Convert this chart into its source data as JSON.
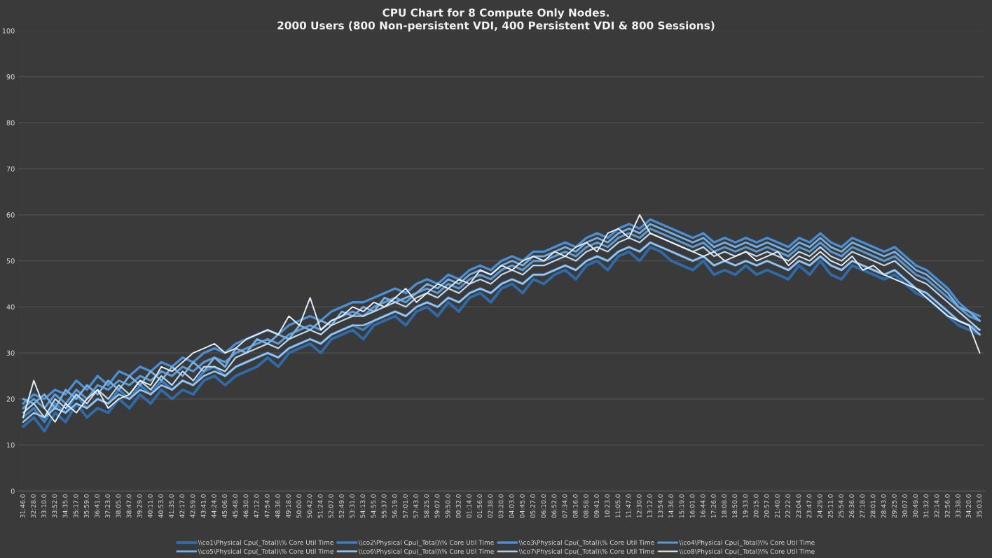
{
  "chart_data": {
    "type": "line",
    "title": "CPU Chart for 8 Compute Only Nodes.",
    "subtitle": "2000 Users (800 Non-persistent VDI, 400 Persistent VDI & 800 Sessions)",
    "categories": [
      "31:46.0",
      "32:28.0",
      "33:10.0",
      "33:52.0",
      "34:35.0",
      "35:17.0",
      "35:59.0",
      "36:41.0",
      "37:23.0",
      "38:05.0",
      "38:47.0",
      "39:29.0",
      "40:11.0",
      "40:53.0",
      "41:35.0",
      "42:17.0",
      "42:59.0",
      "43:41.0",
      "44:24.0",
      "45:06.0",
      "45:48.0",
      "46:30.0",
      "47:12.0",
      "47:54.0",
      "48:36.0",
      "49:18.0",
      "50:00.0",
      "50:42.0",
      "51:24.0",
      "52:07.0",
      "52:49.0",
      "53:31.0",
      "54:13.0",
      "54:55.0",
      "55:37.0",
      "56:19.0",
      "57:01.0",
      "57:43.0",
      "58:25.0",
      "59:07.0",
      "59:50.0",
      "00:32.0",
      "01:14.0",
      "01:56.0",
      "02:38.0",
      "03:20.0",
      "04:03.0",
      "04:45.0",
      "05:27.0",
      "06:10.0",
      "06:52.0",
      "07:34.0",
      "08:16.0",
      "08:58.0",
      "09:41.0",
      "10:23.0",
      "11:05.0",
      "11:47.0",
      "12:30.0",
      "13:12.0",
      "13:54.0",
      "14:36.0",
      "15:19.0",
      "16:01.0",
      "16:44.0",
      "17:26.0",
      "18:08.0",
      "18:50.0",
      "19:33.0",
      "20:15.0",
      "20:57.0",
      "21:40.0",
      "22:22.0",
      "23:04.0",
      "23:47.0",
      "24:29.0",
      "25:11.0",
      "25:54.0",
      "26:36.0",
      "27:18.0",
      "28:01.0",
      "28:43.0",
      "29:25.0",
      "30:07.0",
      "30:49.0",
      "31:32.0",
      "32:14.0",
      "32:56.0",
      "33:38.0",
      "34:20.0",
      "35:03.0"
    ],
    "series": [
      {
        "name": "\\\\co1\\Physical Cpu(_Total)\\% Core Util Time",
        "color": "#2f6ba8",
        "values": [
          14,
          16,
          13,
          17,
          15,
          19,
          16,
          18,
          17,
          20,
          18,
          21,
          19,
          22,
          20,
          22,
          21,
          24,
          25,
          23,
          25,
          26,
          27,
          29,
          27,
          30,
          31,
          32,
          30,
          33,
          34,
          35,
          33,
          36,
          37,
          38,
          36,
          39,
          40,
          38,
          41,
          39,
          42,
          43,
          41,
          44,
          45,
          43,
          46,
          45,
          47,
          48,
          46,
          49,
          50,
          48,
          51,
          52,
          50,
          53,
          52,
          50,
          49,
          48,
          50,
          47,
          48,
          47,
          49,
          47,
          48,
          47,
          46,
          49,
          47,
          50,
          47,
          46,
          49,
          48,
          47,
          46,
          47,
          45,
          43,
          42,
          40,
          38,
          36,
          35,
          34
        ]
      },
      {
        "name": "\\\\co2\\Physical Cpu(_Total)\\% Core Util Time",
        "color": "#3b7dbf",
        "values": [
          16,
          18,
          15,
          19,
          17,
          21,
          18,
          20,
          19,
          22,
          20,
          23,
          21,
          24,
          22,
          24,
          23,
          26,
          27,
          25,
          27,
          28,
          29,
          30,
          29,
          31,
          32,
          33,
          32,
          34,
          35,
          36,
          35,
          37,
          38,
          39,
          38,
          40,
          41,
          40,
          42,
          41,
          43,
          44,
          43,
          45,
          46,
          45,
          47,
          47,
          48,
          49,
          48,
          50,
          51,
          50,
          52,
          53,
          52,
          54,
          53,
          52,
          51,
          50,
          51,
          49,
          50,
          49,
          50,
          49,
          50,
          49,
          48,
          50,
          49,
          51,
          49,
          48,
          50,
          49,
          48,
          47,
          48,
          46,
          44,
          43,
          41,
          39,
          37,
          36,
          35
        ]
      },
      {
        "name": "\\\\co3\\Physical Cpu(_Total)\\% Core Util Time",
        "color": "#4a8ed3",
        "values": [
          19,
          21,
          20,
          22,
          21,
          24,
          22,
          25,
          23,
          26,
          25,
          27,
          26,
          28,
          27,
          29,
          28,
          30,
          31,
          30,
          32,
          33,
          34,
          35,
          34,
          36,
          37,
          38,
          37,
          39,
          40,
          41,
          41,
          42,
          43,
          44,
          43,
          45,
          46,
          45,
          47,
          46,
          48,
          49,
          48,
          50,
          51,
          50,
          52,
          52,
          53,
          54,
          53,
          55,
          56,
          55,
          57,
          58,
          57,
          59,
          58,
          57,
          56,
          55,
          56,
          54,
          55,
          54,
          55,
          54,
          55,
          54,
          53,
          55,
          54,
          56,
          54,
          53,
          55,
          54,
          53,
          52,
          53,
          51,
          49,
          48,
          46,
          44,
          41,
          39,
          38
        ]
      },
      {
        "name": "\\\\co4\\Physical Cpu(_Total)\\% Core Util Time",
        "color": "#5b9bd5",
        "values": [
          18,
          20,
          18,
          21,
          19,
          22,
          20,
          23,
          22,
          24,
          23,
          25,
          24,
          26,
          25,
          27,
          26,
          28,
          29,
          28,
          30,
          31,
          32,
          33,
          32,
          34,
          35,
          36,
          35,
          37,
          38,
          39,
          38,
          40,
          41,
          42,
          41,
          43,
          44,
          43,
          45,
          44,
          46,
          47,
          46,
          48,
          49,
          48,
          50,
          50,
          51,
          52,
          51,
          53,
          54,
          53,
          55,
          56,
          55,
          57,
          56,
          55,
          54,
          53,
          54,
          52,
          53,
          52,
          53,
          52,
          53,
          52,
          51,
          53,
          52,
          54,
          52,
          51,
          53,
          52,
          51,
          50,
          51,
          49,
          47,
          46,
          44,
          42,
          40,
          38,
          37
        ]
      },
      {
        "name": "\\\\co5\\Physical Cpu(_Total)\\% Core Util Time",
        "color": "#7aaee0",
        "values": [
          20,
          19,
          21,
          18,
          22,
          20,
          23,
          21,
          24,
          22,
          25,
          23,
          26,
          24,
          27,
          25,
          28,
          26,
          29,
          27,
          31,
          30,
          33,
          32,
          34,
          33,
          36,
          35,
          37,
          36,
          39,
          38,
          40,
          39,
          42,
          41,
          42,
          43,
          45,
          44,
          46,
          45,
          47,
          48,
          47,
          49,
          50,
          49,
          51,
          51,
          52,
          53,
          52,
          54,
          55,
          54,
          56,
          57,
          56,
          58,
          57,
          56,
          55,
          54,
          55,
          53,
          54,
          53,
          54,
          53,
          54,
          53,
          52,
          54,
          53,
          55,
          53,
          52,
          54,
          53,
          52,
          51,
          52,
          50,
          48,
          47,
          45,
          43,
          40,
          39,
          37
        ]
      },
      {
        "name": "\\\\co6\\Physical Cpu(_Total)\\% Core Util Time",
        "color": "#9dc3e6",
        "values": [
          15,
          17,
          16,
          18,
          17,
          19,
          18,
          20,
          19,
          21,
          20,
          22,
          21,
          23,
          22,
          24,
          23,
          25,
          26,
          25,
          27,
          28,
          29,
          30,
          29,
          31,
          32,
          33,
          32,
          34,
          35,
          36,
          36,
          37,
          38,
          39,
          38,
          40,
          41,
          40,
          42,
          41,
          43,
          44,
          43,
          45,
          46,
          45,
          47,
          47,
          48,
          49,
          48,
          50,
          51,
          50,
          52,
          53,
          52,
          54,
          53,
          52,
          51,
          50,
          51,
          49,
          50,
          49,
          50,
          49,
          50,
          49,
          48,
          50,
          49,
          51,
          49,
          48,
          50,
          49,
          48,
          47,
          48,
          46,
          44,
          43,
          41,
          39,
          37,
          36,
          34
        ]
      },
      {
        "name": "\\\\co7\\Physical Cpu(_Total)\\% Core Util Time",
        "color": "#bdd7ee",
        "values": [
          17,
          19,
          16,
          20,
          18,
          21,
          19,
          22,
          20,
          23,
          21,
          24,
          22,
          25,
          23,
          26,
          24,
          27,
          27,
          26,
          29,
          30,
          31,
          32,
          31,
          33,
          34,
          35,
          34,
          36,
          37,
          38,
          38,
          39,
          40,
          41,
          40,
          42,
          43,
          42,
          44,
          43,
          45,
          46,
          45,
          47,
          48,
          47,
          49,
          49,
          50,
          51,
          50,
          52,
          53,
          52,
          54,
          55,
          54,
          56,
          55,
          54,
          53,
          52,
          53,
          51,
          52,
          51,
          52,
          51,
          52,
          51,
          50,
          52,
          51,
          53,
          51,
          50,
          52,
          51,
          50,
          49,
          50,
          48,
          46,
          45,
          43,
          41,
          39,
          37,
          35
        ]
      },
      {
        "name": "\\\\co8\\Physical Cpu(_Total)\\% Core Util Time",
        "color": "#e4eef8",
        "values": [
          16,
          24,
          18,
          15,
          19,
          17,
          20,
          22,
          18,
          20,
          21,
          24,
          23,
          27,
          26,
          28,
          30,
          31,
          32,
          30,
          31,
          33,
          34,
          35,
          34,
          38,
          36,
          42,
          35,
          37,
          38,
          40,
          39,
          41,
          40,
          42,
          44,
          41,
          43,
          45,
          44,
          46,
          45,
          48,
          47,
          49,
          48,
          50,
          51,
          50,
          52,
          51,
          53,
          54,
          52,
          56,
          57,
          55,
          60,
          56,
          55,
          54,
          53,
          52,
          51,
          52,
          50,
          51,
          52,
          50,
          51,
          52,
          49,
          51,
          50,
          52,
          50,
          49,
          51,
          48,
          49,
          47,
          46,
          45,
          44,
          42,
          40,
          38,
          37,
          36,
          30
        ]
      }
    ],
    "ylim": [
      0,
      100
    ],
    "yticks": [
      0,
      10,
      20,
      30,
      40,
      50,
      60,
      70,
      80,
      90,
      100
    ],
    "grid": "y",
    "legend": "bottom",
    "marker": "none",
    "line_style": "solid"
  }
}
